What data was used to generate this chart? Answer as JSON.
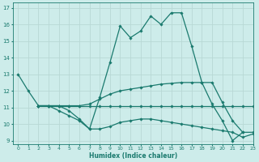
{
  "xlabel": "Humidex (Indice chaleur)",
  "xlim": [
    -0.5,
    23
  ],
  "ylim": [
    8.8,
    17.3
  ],
  "yticks": [
    9,
    10,
    11,
    12,
    13,
    14,
    15,
    16,
    17
  ],
  "xticks": [
    0,
    1,
    2,
    3,
    4,
    5,
    6,
    7,
    8,
    9,
    10,
    11,
    12,
    13,
    14,
    15,
    16,
    17,
    18,
    19,
    20,
    21,
    22,
    23
  ],
  "bg_color": "#cdecea",
  "line_color": "#1a7a6e",
  "grid_color": "#b8d8d5",
  "lines": [
    {
      "x": [
        0,
        1,
        2,
        3,
        4,
        5,
        6,
        7,
        8,
        9,
        10,
        11,
        12,
        13,
        14,
        15,
        16,
        17,
        18,
        19,
        20,
        21,
        22
      ],
      "y": [
        13,
        12,
        11.1,
        11.1,
        11.1,
        10.8,
        10.3,
        9.7,
        11.6,
        13.7,
        15.9,
        15.2,
        15.6,
        16.5,
        16.0,
        16.7,
        16.7,
        14.7,
        12.5,
        11.2,
        10.2,
        9.0,
        9.5
      ]
    },
    {
      "x": [
        2,
        3,
        4,
        5,
        6,
        7,
        8,
        9,
        10,
        11,
        12,
        13,
        14,
        15,
        16,
        17,
        18,
        19,
        20,
        21,
        22,
        23
      ],
      "y": [
        11.1,
        11.1,
        11.1,
        11.1,
        11.1,
        11.1,
        11.1,
        11.1,
        11.1,
        11.1,
        11.1,
        11.1,
        11.1,
        11.1,
        11.1,
        11.1,
        11.1,
        11.1,
        11.1,
        11.1,
        11.1,
        11.1
      ]
    },
    {
      "x": [
        2,
        3,
        4,
        5,
        6,
        7,
        8,
        9,
        10,
        11,
        12,
        13,
        14,
        15,
        16,
        17,
        18,
        19,
        20,
        21,
        22,
        23
      ],
      "y": [
        11.1,
        11.1,
        11.1,
        11.1,
        11.1,
        11.2,
        11.5,
        11.8,
        12.0,
        12.1,
        12.2,
        12.3,
        12.4,
        12.45,
        12.5,
        12.5,
        12.5,
        12.5,
        11.3,
        10.2,
        9.5,
        9.5
      ]
    },
    {
      "x": [
        2,
        3,
        4,
        5,
        6,
        7,
        8,
        9,
        10,
        11,
        12,
        13,
        14,
        15,
        16,
        17,
        18,
        19,
        20,
        21,
        22,
        23
      ],
      "y": [
        11.1,
        11.1,
        10.8,
        10.5,
        10.2,
        9.7,
        9.7,
        9.85,
        10.1,
        10.2,
        10.3,
        10.3,
        10.2,
        10.1,
        10.0,
        9.9,
        9.8,
        9.7,
        9.6,
        9.5,
        9.2,
        9.4
      ]
    }
  ]
}
